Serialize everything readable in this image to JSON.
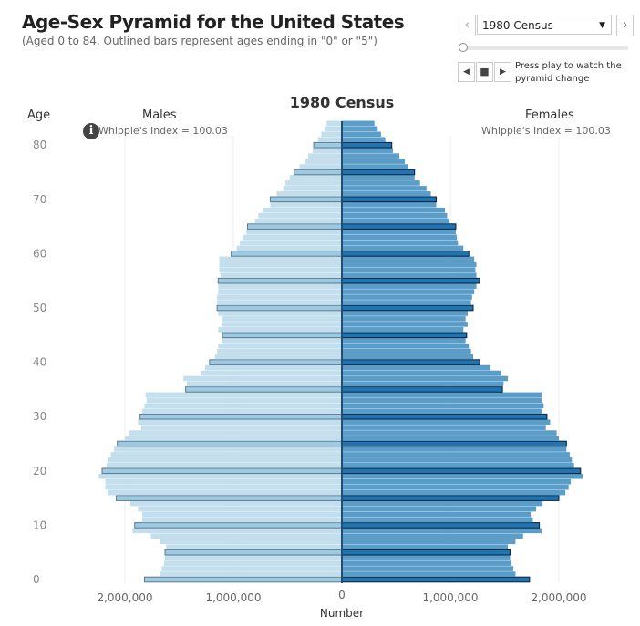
{
  "header": {
    "title": "Age-Sex Pyramid for the United States",
    "subtitle": "(Aged 0 to 84. Outlined bars represent ages ending in \"0\" or \"5\")"
  },
  "controls": {
    "prev_icon": "chevron-left-icon",
    "next_icon": "chevron-right-icon",
    "selected": "1980 Census",
    "slider_position": 0,
    "play_hint": "Press play to watch the pyramid change"
  },
  "colors": {
    "male": "#c3deec",
    "male_outlined": "#9ecae1",
    "female": "#5b9dc9",
    "female_outlined": "#1f74b1",
    "center_line": "#1f4e79"
  },
  "chart_data": {
    "type": "bar",
    "title": "1980 Census",
    "ylabel": "Age",
    "xlabel": "Number",
    "left_label": "Males",
    "right_label": "Females",
    "male_whipple": "Whipple's Index = 100.03",
    "female_whipple": "Whipple's Index = 100.03",
    "age_ticks": [
      "0",
      "10",
      "20",
      "30",
      "40",
      "50",
      "60",
      "70",
      "80"
    ],
    "x_ticks": [
      {
        "value": -2000000,
        "label": "2,000,000"
      },
      {
        "value": -1000000,
        "label": "1,000,000"
      },
      {
        "value": 0,
        "label": "0"
      },
      {
        "value": 1000000,
        "label": "1,000,000"
      },
      {
        "value": 2000000,
        "label": "2,000,000"
      }
    ],
    "xlim": [
      -2300000,
      2300000
    ],
    "ages": [
      0,
      84
    ],
    "series": [
      {
        "name": "Males",
        "values": [
          1820000,
          1680000,
          1660000,
          1640000,
          1630000,
          1630000,
          1620000,
          1680000,
          1760000,
          1930000,
          1910000,
          1840000,
          1840000,
          1880000,
          1950000,
          2080000,
          2160000,
          2180000,
          2180000,
          2240000,
          2210000,
          2170000,
          2160000,
          2130000,
          2100000,
          2070000,
          2000000,
          1960000,
          1850000,
          1880000,
          1860000,
          1840000,
          1820000,
          1800000,
          1810000,
          1440000,
          1430000,
          1460000,
          1300000,
          1260000,
          1220000,
          1170000,
          1150000,
          1140000,
          1100000,
          1100000,
          1140000,
          1100000,
          1110000,
          1140000,
          1150000,
          1150000,
          1150000,
          1140000,
          1140000,
          1140000,
          1120000,
          1130000,
          1130000,
          1130000,
          1020000,
          970000,
          940000,
          910000,
          880000,
          870000,
          800000,
          770000,
          730000,
          660000,
          660000,
          600000,
          540000,
          520000,
          480000,
          440000,
          390000,
          340000,
          310000,
          270000,
          260000,
          220000,
          190000,
          160000,
          140000
        ]
      },
      {
        "name": "Females",
        "values": [
          1730000,
          1600000,
          1580000,
          1560000,
          1550000,
          1550000,
          1530000,
          1600000,
          1670000,
          1840000,
          1820000,
          1760000,
          1740000,
          1790000,
          1850000,
          2000000,
          2060000,
          2090000,
          2110000,
          2220000,
          2200000,
          2140000,
          2120000,
          2100000,
          2070000,
          2070000,
          2000000,
          1980000,
          1880000,
          1920000,
          1890000,
          1840000,
          1860000,
          1840000,
          1840000,
          1480000,
          1490000,
          1530000,
          1470000,
          1370000,
          1270000,
          1210000,
          1190000,
          1170000,
          1140000,
          1150000,
          1120000,
          1160000,
          1140000,
          1160000,
          1210000,
          1190000,
          1200000,
          1220000,
          1240000,
          1270000,
          1240000,
          1230000,
          1240000,
          1220000,
          1170000,
          1120000,
          1070000,
          1060000,
          1050000,
          1050000,
          990000,
          970000,
          950000,
          870000,
          870000,
          820000,
          780000,
          720000,
          670000,
          670000,
          610000,
          580000,
          530000,
          470000,
          460000,
          400000,
          360000,
          330000,
          300000
        ]
      }
    ]
  }
}
